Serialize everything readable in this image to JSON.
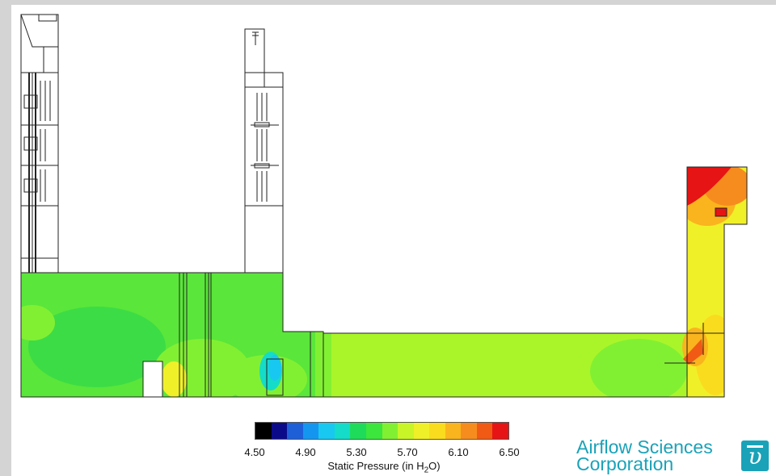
{
  "colorbar": {
    "colors": [
      "#000000",
      "#0b0b8a",
      "#1e5fd8",
      "#1496f0",
      "#18c8f0",
      "#14dcc8",
      "#1edc5a",
      "#3ce63c",
      "#82f032",
      "#c8f528",
      "#f0f028",
      "#fadc1e",
      "#fab41e",
      "#f68c1e",
      "#f05a14",
      "#e61414"
    ],
    "ticks": [
      "4.50",
      "4.90",
      "5.30",
      "5.70",
      "6.10",
      "6.50"
    ],
    "label_prefix": "Static Pressure (in H",
    "label_sub": "2",
    "label_suffix": "O)"
  },
  "logo": {
    "line1": "Airflow Sciences",
    "line2": "Corporation",
    "mark": "υ"
  }
}
